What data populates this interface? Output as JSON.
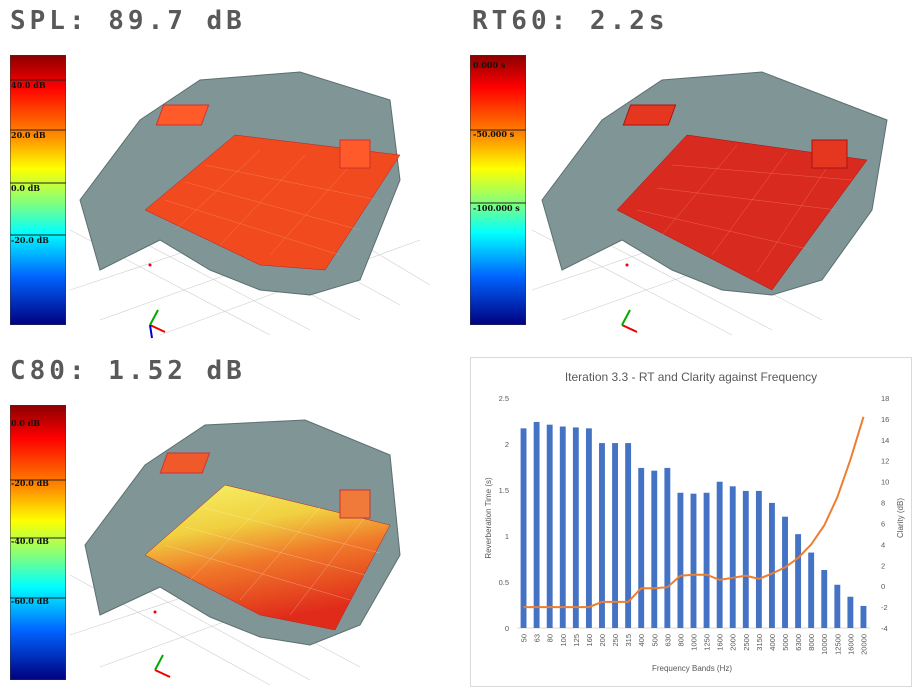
{
  "panels": {
    "spl": {
      "title": "SPL: 89.7 dB",
      "colorbar_labels": [
        "40.0 dB",
        "20.0 dB",
        "0.0 dB",
        "-20.0 dB"
      ]
    },
    "rt60": {
      "title": "RT60: 2.2s",
      "colorbar_labels": [
        "0.000 s",
        "-50.000 s",
        "-100.000 s"
      ]
    },
    "c80": {
      "title": "C80: 1.52 dB",
      "colorbar_labels": [
        "0.0 dB",
        "-20.0 dB",
        "-40.0 dB",
        "-60.0 dB"
      ]
    }
  },
  "chart_data": {
    "type": "bar",
    "title": "Iteration 3.3 - RT and Clarity against Frequency",
    "xlabel": "Frequency Bands (Hz)",
    "ylabel": "Reverberation Time (s)",
    "y2label": "Clarity (dB)",
    "categories": [
      "50",
      "63",
      "80",
      "100",
      "125",
      "160",
      "200",
      "250",
      "315",
      "400",
      "500",
      "630",
      "800",
      "1000",
      "1250",
      "1600",
      "2000",
      "2500",
      "3150",
      "4000",
      "5000",
      "6300",
      "8000",
      "10000",
      "12500",
      "16000",
      "20000"
    ],
    "ylim": [
      0,
      2.5
    ],
    "yticks": [
      "0",
      "0.5",
      "1",
      "1.5",
      "2",
      "2.5"
    ],
    "y2lim": [
      -4,
      18
    ],
    "y2ticks": [
      "-4",
      "-2",
      "0",
      "2",
      "4",
      "6",
      "8",
      "10",
      "12",
      "14",
      "16",
      "18"
    ],
    "grid": false,
    "series": [
      {
        "type": "bar",
        "axis": "left",
        "color": "#4472c4",
        "values": [
          2.17,
          2.24,
          2.21,
          2.19,
          2.18,
          2.17,
          2.01,
          2.01,
          2.01,
          1.74,
          1.71,
          1.74,
          1.47,
          1.46,
          1.47,
          1.59,
          1.54,
          1.49,
          1.49,
          1.36,
          1.21,
          1.02,
          0.82,
          0.63,
          0.47,
          0.34,
          0.24
        ]
      },
      {
        "type": "line",
        "axis": "right",
        "color": "#ed7d31",
        "values": [
          -2,
          -2,
          -2,
          -2,
          -2,
          -2,
          -1.5,
          -1.5,
          -1.5,
          -0.2,
          -0.2,
          -0.1,
          1,
          1.1,
          1.1,
          0.6,
          0.8,
          1,
          0.7,
          1.2,
          1.8,
          2.7,
          4,
          5.8,
          8.5,
          12.1,
          16.2
        ]
      }
    ]
  }
}
